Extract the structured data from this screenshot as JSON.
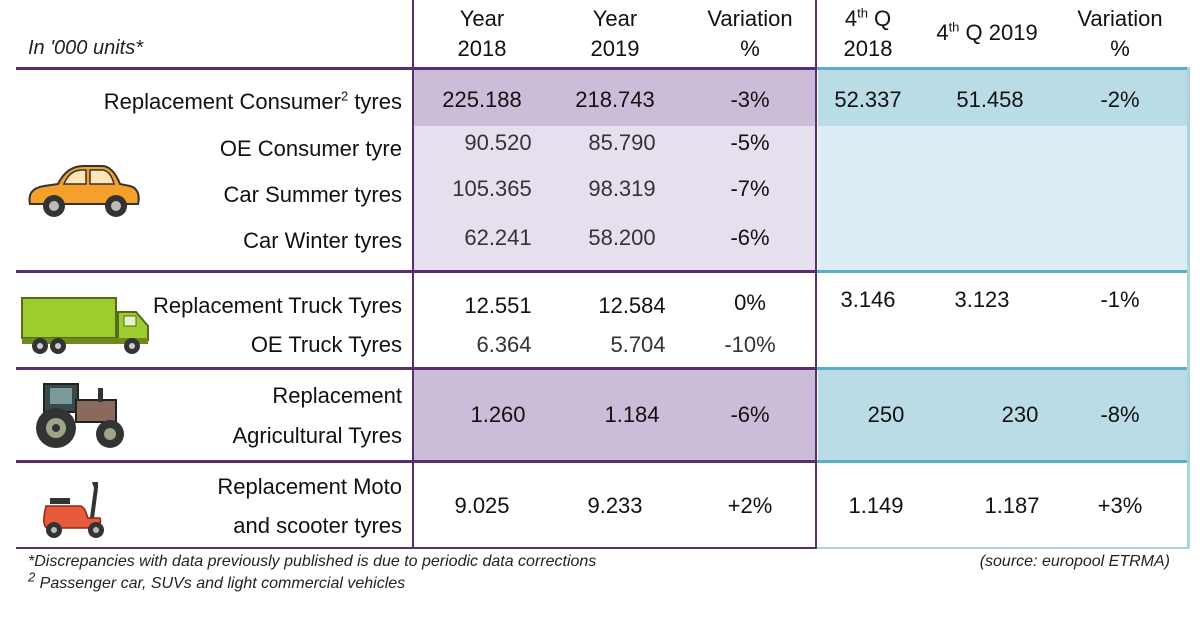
{
  "header": {
    "units": "In '000 units*",
    "year2018": [
      "Year",
      "2018"
    ],
    "year2019": [
      "Year",
      "2019"
    ],
    "variation": [
      "Variation",
      "%"
    ],
    "q4_2018_sup": "th",
    "q4_2018": [
      "4",
      " Q",
      "2018"
    ],
    "q4_2019": [
      "4",
      "th",
      " Q 2019"
    ],
    "variation_q": [
      "Variation",
      "%"
    ]
  },
  "rows": {
    "replacement_consumer": {
      "label": "Replacement Consumer",
      "sup": "2",
      "label_suffix": " tyres",
      "y2018": "225.188",
      "y2019": "218.743",
      "var": "-3%",
      "q2018": "52.337",
      "q2019": "51.458",
      "qvar": "-2%"
    },
    "oe_consumer": {
      "label": "OE Consumer tyre",
      "y2018": "90.520",
      "y2019": "85.790",
      "var": "-5%"
    },
    "car_summer": {
      "label": "Car Summer tyres",
      "y2018": "105.365",
      "y2019": "98.319",
      "var": "-7%"
    },
    "car_winter": {
      "label": "Car Winter tyres",
      "y2018": "62.241",
      "y2019": "58.200",
      "var": "-6%"
    },
    "replacement_truck": {
      "label": "Replacement Truck Tyres",
      "y2018": "12.551",
      "y2019": "12.584",
      "var": "0%",
      "q2018": "3.146",
      "q2019": "3.123",
      "qvar": "-1%"
    },
    "oe_truck": {
      "label": "OE Truck Tyres",
      "y2018": "6.364",
      "y2019": "5.704",
      "var": "-10%"
    },
    "agricultural": {
      "label_line1": "Replacement",
      "label_line2": "Agricultural Tyres",
      "y2018": "1.260",
      "y2019": "1.184",
      "var": "-6%",
      "q2018": "250",
      "q2019": "230",
      "qvar": "-8%"
    },
    "moto": {
      "label_line1": "Replacement Moto",
      "label_line2": "and scooter tyres",
      "y2018": "9.025",
      "y2019": "9.233",
      "var": "+2%",
      "q2018": "1.149",
      "q2019": "1.187",
      "qvar": "+3%"
    }
  },
  "footnotes": {
    "discrepancies": "*Discrepancies with data previously published is due to periodic data corrections",
    "note2_sup": "2",
    "note2": " Passenger car, SUVs and light commercial vehicles",
    "source": "(source: europool ETRMA)"
  },
  "icons": [
    "car-icon",
    "truck-icon",
    "tractor-icon",
    "scooter-icon"
  ],
  "colors": {
    "purple_dark": "#cbbdd9",
    "purple_light": "#e6e0ee",
    "blue_dark": "#b9dce6",
    "blue_light": "#dbeef3",
    "divider_purple": "#5a2e6e",
    "divider_blue": "#5aaec4"
  }
}
